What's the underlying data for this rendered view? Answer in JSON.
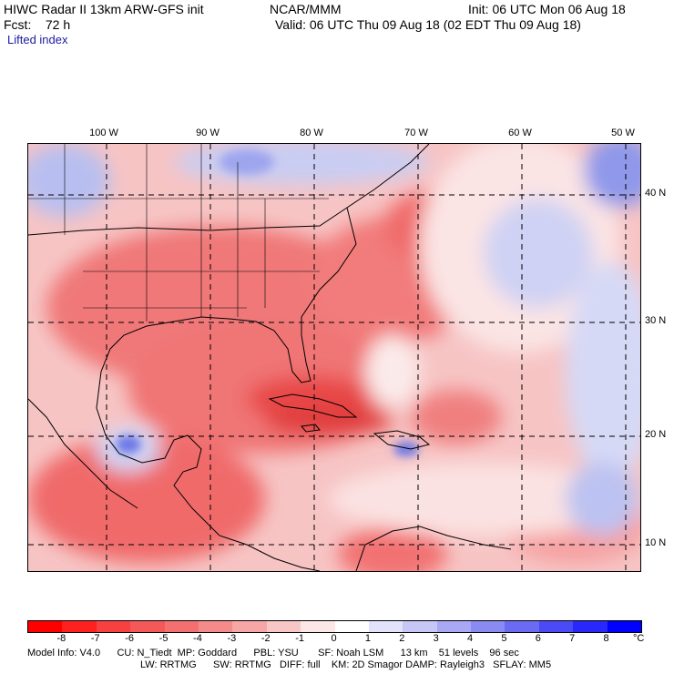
{
  "header": {
    "line1_left": "HIWC Radar II 13km ARW-GFS init",
    "line1_mid": "NCAR/MMM",
    "line1_right": "Init: 06 UTC Mon 06 Aug 18",
    "line2_left": "Fcst:    72 h",
    "line2_right": "Valid: 06 UTC Thu 09 Aug 18 (02 EDT Thu 09 Aug 18)",
    "variable": "Lifted index"
  },
  "map": {
    "lon_labels": [
      "100 W",
      "90 W",
      "80 W",
      "70 W",
      "60 W",
      "50 W"
    ],
    "lat_labels": [
      "40 N",
      "30 N",
      "20 N",
      "10 N"
    ]
  },
  "legend": {
    "ticks": [
      "-8",
      "-7",
      "-6",
      "-5",
      "-4",
      "-3",
      "-2",
      "-1",
      "0",
      "1",
      "2",
      "3",
      "4",
      "5",
      "6",
      "7",
      "8"
    ],
    "unit": "°C",
    "colors": [
      "#ff0000",
      "#ff2020",
      "#f74040",
      "#f45858",
      "#f47070",
      "#f48a8a",
      "#f7a6a6",
      "#f9c6c6",
      "#fde6e6",
      "#ffffff",
      "#e2e2fb",
      "#c6c6f7",
      "#a8a8f4",
      "#8a8af3",
      "#6a6af3",
      "#4a4af7",
      "#2828fb",
      "#0000ff"
    ]
  },
  "footer": {
    "line1": "Model Info: V4.0      CU: N_Tiedt  MP: Goddard      PBL: YSU       SF: Noah LSM      13 km    51 levels    96 sec",
    "line2": "LW: RRTMG      SW: RRTMG   DIFF: full    KM: 2D Smagor DAMP: Rayleigh3   SFLAY: MM5"
  }
}
